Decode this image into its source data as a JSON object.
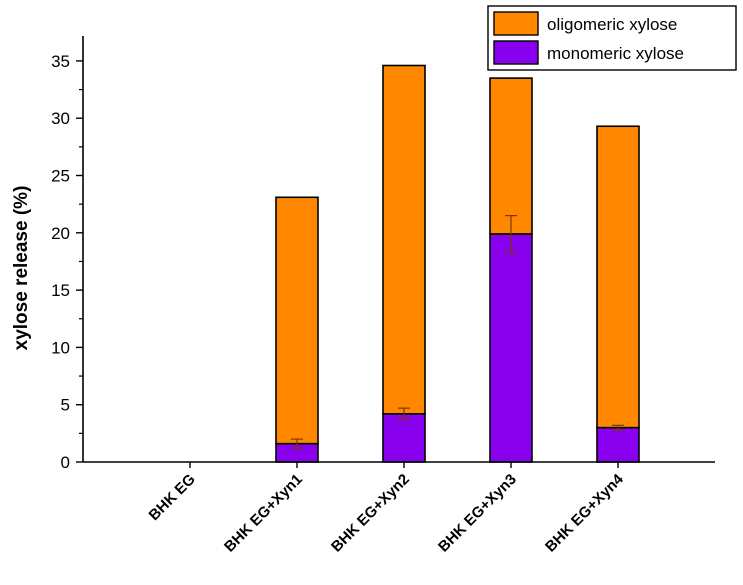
{
  "chart_data": {
    "type": "bar",
    "stacked": true,
    "title": "",
    "xlabel": "",
    "ylabel": "xylose release (%)",
    "ylim": [
      0,
      37
    ],
    "yticks": [
      0,
      5,
      10,
      15,
      20,
      25,
      30,
      35
    ],
    "categories": [
      "BHK EG",
      "BHK EG+Xyn1",
      "BHK EG+Xyn2",
      "BHK EG+Xyn3",
      "BHK EG+Xyn4"
    ],
    "series": [
      {
        "name": "monomeric xylose",
        "color": "#8800ee",
        "values": [
          0,
          1.6,
          4.2,
          19.9,
          3.0
        ],
        "error": [
          0,
          0.4,
          0.5,
          1.6,
          0.2
        ]
      },
      {
        "name": "oligomeric xylose",
        "color": "#ff8800",
        "values": [
          0,
          21.5,
          30.4,
          13.6,
          26.3
        ],
        "error": [
          0,
          0,
          0,
          0,
          0
        ]
      }
    ],
    "legend": {
      "position": "top-right",
      "order": [
        "oligomeric xylose",
        "monomeric xylose"
      ]
    },
    "grid": false
  }
}
